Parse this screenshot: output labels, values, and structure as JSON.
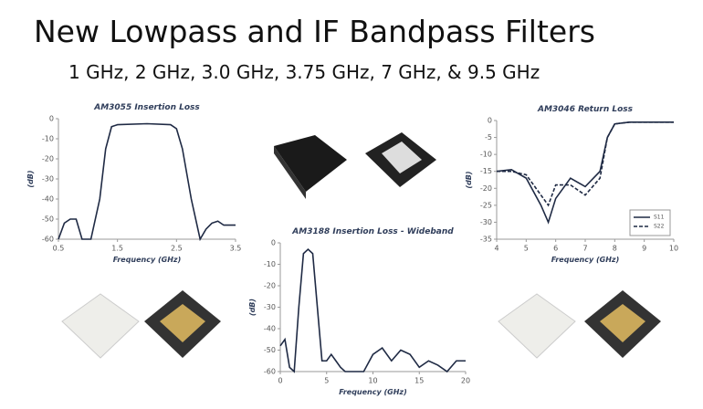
{
  "title": "New Lowpass and IF Bandpass Filters",
  "subtitle": "1 GHz, 2 GHz, 3.0 GHz, 3.75 GHz, 7 GHz, & 9.5 GHz",
  "chart_data": [
    {
      "type": "line",
      "title": "AM3055 Insertion Loss",
      "xlabel": "Frequency (GHz)",
      "ylabel": "(dB)",
      "x": [
        0.5,
        0.6,
        0.7,
        0.8,
        0.85,
        0.9,
        1.05,
        1.2,
        1.3,
        1.4,
        1.5,
        2.0,
        2.4,
        2.5,
        2.6,
        2.75,
        2.9,
        3.0,
        3.1,
        3.2,
        3.3,
        3.5
      ],
      "series": [
        {
          "color": "#1f2a44",
          "values": [
            -60,
            -52,
            -50,
            -50,
            -55,
            -60,
            -60,
            -40,
            -15,
            -4,
            -3,
            -2.5,
            -3,
            -5,
            -15,
            -40,
            -60,
            -55,
            -52,
            -51,
            -53,
            -53
          ]
        }
      ],
      "xlim": [
        0.5,
        3.5
      ],
      "xticks": [
        0.5,
        1.5,
        2.5,
        3.5
      ],
      "ylim": [
        -60,
        0
      ],
      "yticks": [
        0,
        -10,
        -20,
        -30,
        -40,
        -50,
        -60
      ]
    },
    {
      "type": "line",
      "title": "AM3188 Insertion Loss - Wideband",
      "xlabel": "Frequency (GHz)",
      "ylabel": "(dB)",
      "x": [
        0,
        0.5,
        1,
        1.5,
        2,
        2.5,
        3,
        3.5,
        4,
        4.5,
        5,
        5.5,
        6,
        6.5,
        7,
        9,
        10,
        11,
        12,
        13,
        14,
        15,
        16,
        17,
        18,
        19,
        20
      ],
      "series": [
        {
          "color": "#1f2a44",
          "values": [
            -48,
            -45,
            -58,
            -60,
            -30,
            -5,
            -3,
            -5,
            -30,
            -55,
            -55,
            -52,
            -55,
            -58,
            -60,
            -60,
            -52,
            -49,
            -55,
            -50,
            -52,
            -58,
            -55,
            -57,
            -60,
            -55,
            -55
          ]
        }
      ],
      "xlim": [
        0,
        20
      ],
      "xticks": [
        0,
        5,
        10,
        15,
        20
      ],
      "ylim": [
        -60,
        0
      ],
      "yticks": [
        0,
        -10,
        -20,
        -30,
        -40,
        -50,
        -60
      ]
    },
    {
      "type": "line",
      "title": "AM3046 Return Loss",
      "xlabel": "Frequency (GHz)",
      "ylabel": "(dB)",
      "x": [
        4,
        4.5,
        5,
        5.5,
        5.75,
        6,
        6.5,
        7,
        7.5,
        7.75,
        8,
        8.5,
        9,
        10
      ],
      "series": [
        {
          "name": "S11",
          "color": "#1f2a44",
          "line_style": "solid",
          "values": [
            -15,
            -14.5,
            -17,
            -25,
            -30,
            -23,
            -17,
            -19.5,
            -15,
            -5,
            -1,
            -0.5,
            -0.5,
            -0.5
          ]
        },
        {
          "name": "S22",
          "color": "#1f2a44",
          "line_style": "dashed",
          "values": [
            -15,
            -15,
            -16,
            -22,
            -25,
            -19,
            -19,
            -22,
            -17,
            -5,
            -1,
            -0.5,
            -0.5,
            -0.5
          ]
        }
      ],
      "xlim": [
        4,
        10
      ],
      "xticks": [
        4,
        5,
        6,
        7,
        8,
        9,
        10
      ],
      "ylim": [
        -35,
        0
      ],
      "yticks": [
        0,
        -5,
        -10,
        -15,
        -20,
        -25,
        -30,
        -35
      ],
      "legend": "lower right"
    }
  ]
}
